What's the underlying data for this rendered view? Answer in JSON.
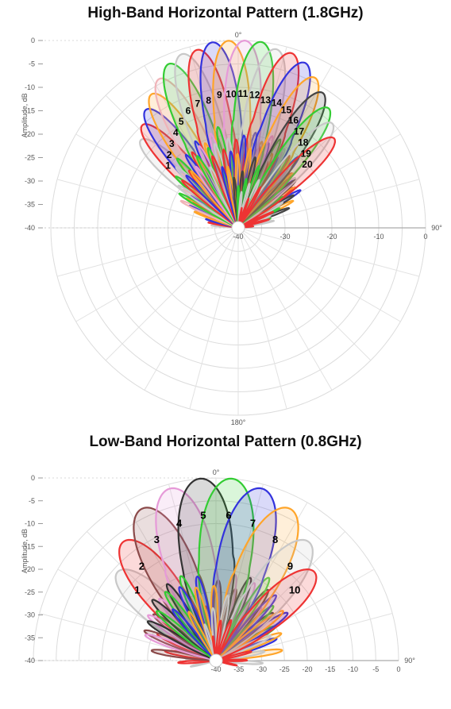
{
  "chart_data": [
    {
      "type": "polar-radiation-pattern",
      "title": "High-Band Horizontal Pattern (1.8GHz)",
      "ylabel": "Amplitude, dB",
      "rlim": [
        -40,
        0
      ],
      "radial_ticks": [
        "0",
        "-5",
        "-10",
        "-15",
        "-20",
        "-25",
        "-30",
        "-35",
        "-40"
      ],
      "horizontal_ticks": [
        "-40",
        "-30",
        "-20",
        "-10",
        "0"
      ],
      "angle_labels": [
        "0°",
        "90°",
        "180°"
      ],
      "beamwidth_deg": 8,
      "series": [
        {
          "name": "1",
          "angle_deg": -48,
          "peak_db": -12,
          "color": "#c8c8c8"
        },
        {
          "name": "2",
          "angle_deg": -43,
          "peak_db": -10,
          "color": "#ee3333"
        },
        {
          "name": "3",
          "angle_deg": -38,
          "peak_db": -8,
          "color": "#3333dd"
        },
        {
          "name": "4",
          "angle_deg": -33,
          "peak_db": -6,
          "color": "#ffa52a"
        },
        {
          "name": "5",
          "angle_deg": -28,
          "peak_db": -4,
          "color": "#f0b3b8"
        },
        {
          "name": "6",
          "angle_deg": -23,
          "peak_db": -2,
          "color": "#33cc33"
        },
        {
          "name": "7",
          "angle_deg": -18,
          "peak_db": -1,
          "color": "#c8c8c8"
        },
        {
          "name": "8",
          "angle_deg": -13,
          "peak_db": -1,
          "color": "#ee3333"
        },
        {
          "name": "9",
          "angle_deg": -8,
          "peak_db": 0,
          "color": "#3333dd"
        },
        {
          "name": "10",
          "angle_deg": -3,
          "peak_db": 0,
          "color": "#ffa52a"
        },
        {
          "name": "11",
          "angle_deg": 2,
          "peak_db": 0,
          "color": "#e69ad8"
        },
        {
          "name": "12",
          "angle_deg": 7,
          "peak_db": 0,
          "color": "#33cc33"
        },
        {
          "name": "13",
          "angle_deg": 12,
          "peak_db": -1,
          "color": "#c8c8c8"
        },
        {
          "name": "14",
          "angle_deg": 17,
          "peak_db": -1,
          "color": "#ee3333"
        },
        {
          "name": "15",
          "angle_deg": 22,
          "peak_db": -2,
          "color": "#3333dd"
        },
        {
          "name": "16",
          "angle_deg": 27,
          "peak_db": -4,
          "color": "#ffa52a"
        },
        {
          "name": "17",
          "angle_deg": 32,
          "peak_db": -6,
          "color": "#444444"
        },
        {
          "name": "18",
          "angle_deg": 37,
          "peak_db": -8,
          "color": "#33cc33"
        },
        {
          "name": "19",
          "angle_deg": 42,
          "peak_db": -10,
          "color": "#c8c8c8"
        },
        {
          "name": "20",
          "angle_deg": 47,
          "peak_db": -12,
          "color": "#ee3333"
        }
      ]
    },
    {
      "type": "polar-radiation-pattern",
      "title": "Low-Band Horizontal Pattern (0.8GHz)",
      "ylabel": "Amplitude, dB",
      "rlim": [
        -40,
        0
      ],
      "radial_ticks": [
        "0",
        "-5",
        "-10",
        "-15",
        "-20",
        "-25",
        "-30",
        "-35",
        "-40"
      ],
      "horizontal_ticks": [
        "-40",
        "-35",
        "-30",
        "-25",
        "-20",
        "-15",
        "-10",
        "-5",
        "0"
      ],
      "angle_labels": [
        "0°",
        "90°"
      ],
      "beamwidth_deg": 12,
      "series": [
        {
          "name": "1",
          "angle_deg": -48,
          "peak_db": -11,
          "color": "#c8c8c8"
        },
        {
          "name": "2",
          "angle_deg": -38,
          "peak_db": -7,
          "color": "#ee3333"
        },
        {
          "name": "3",
          "angle_deg": -26,
          "peak_db": -3,
          "color": "#8b4a4a"
        },
        {
          "name": "4",
          "angle_deg": -15,
          "peak_db": -1,
          "color": "#e69ad8"
        },
        {
          "name": "5",
          "angle_deg": -5,
          "peak_db": 0,
          "color": "#333333"
        },
        {
          "name": "6",
          "angle_deg": 5,
          "peak_db": 0,
          "color": "#33cc33"
        },
        {
          "name": "7",
          "angle_deg": 15,
          "peak_db": -1,
          "color": "#3333dd"
        },
        {
          "name": "8",
          "angle_deg": 26,
          "peak_db": -3,
          "color": "#ffa52a"
        },
        {
          "name": "9",
          "angle_deg": 38,
          "peak_db": -7,
          "color": "#c8c8c8"
        },
        {
          "name": "10",
          "angle_deg": 48,
          "peak_db": -11,
          "color": "#ee3333"
        }
      ]
    }
  ]
}
